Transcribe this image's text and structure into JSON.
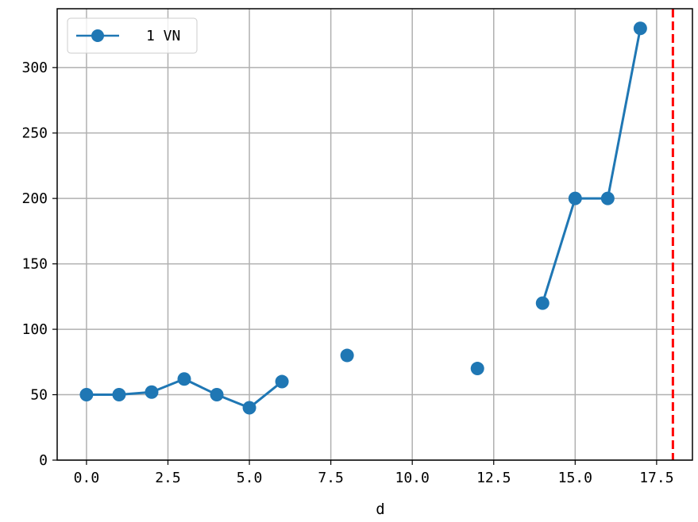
{
  "chart_data": {
    "type": "line",
    "title": "",
    "xlabel": "d",
    "ylabel": "",
    "xlim": [
      -0.9,
      18.6
    ],
    "ylim": [
      0,
      345
    ],
    "xticks": [
      0.0,
      2.5,
      5.0,
      7.5,
      10.0,
      12.5,
      15.0,
      17.5
    ],
    "xtick_labels": [
      "0.0",
      "2.5",
      "5.0",
      "7.5",
      "10.0",
      "12.5",
      "15.0",
      "17.5"
    ],
    "yticks": [
      0,
      50,
      100,
      150,
      200,
      250,
      300
    ],
    "ytick_labels": [
      "0",
      "50",
      "100",
      "150",
      "200",
      "250",
      "300"
    ],
    "grid": true,
    "legend_position": "top-left",
    "series": [
      {
        "name": "1 VN",
        "color": "#1f77b4",
        "marker": "circle",
        "x": [
          0,
          1,
          2,
          3,
          4,
          5,
          6,
          7,
          8,
          9,
          10,
          11,
          12,
          13,
          14,
          15,
          16,
          17
        ],
        "y": [
          50,
          50,
          52,
          62,
          50,
          40,
          60,
          null,
          80,
          null,
          null,
          null,
          70,
          null,
          120,
          200,
          200,
          330
        ]
      }
    ],
    "vline": {
      "x": 18,
      "color": "#ff0000",
      "style": "dashed"
    }
  }
}
